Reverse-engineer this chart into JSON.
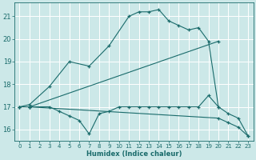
{
  "bg_color": "#cce8e8",
  "grid_color": "#ffffff",
  "line_color": "#1a6b6b",
  "xlabel": "Humidex (Indice chaleur)",
  "xlim": [
    -0.5,
    23.5
  ],
  "ylim": [
    15.5,
    21.6
  ],
  "yticks": [
    16,
    17,
    18,
    19,
    20,
    21
  ],
  "xticks": [
    0,
    1,
    2,
    3,
    4,
    5,
    6,
    7,
    8,
    9,
    10,
    11,
    12,
    13,
    14,
    15,
    16,
    17,
    18,
    19,
    20,
    21,
    22,
    23
  ],
  "lines": [
    {
      "x": [
        0,
        1,
        3,
        5,
        7,
        9,
        11,
        12,
        13,
        14,
        15,
        16,
        17,
        18,
        19,
        20
      ],
      "y": [
        17.0,
        17.1,
        17.9,
        19.0,
        18.8,
        19.7,
        21.0,
        21.2,
        21.2,
        21.3,
        20.8,
        20.6,
        20.4,
        20.5,
        19.9,
        17.0
      ]
    },
    {
      "x": [
        0,
        1,
        20
      ],
      "y": [
        17.0,
        17.0,
        19.9
      ]
    },
    {
      "x": [
        1,
        3,
        4,
        5,
        6,
        7,
        8,
        9,
        10,
        11,
        12,
        13,
        14,
        15,
        16,
        17,
        18,
        19,
        20,
        21,
        22,
        23
      ],
      "y": [
        17.0,
        17.0,
        16.8,
        16.6,
        16.4,
        15.8,
        16.7,
        16.8,
        17.0,
        17.0,
        17.0,
        17.0,
        17.0,
        17.0,
        17.0,
        17.0,
        17.0,
        17.5,
        17.0,
        16.7,
        16.5,
        15.7
      ]
    },
    {
      "x": [
        0,
        1,
        20,
        21,
        22,
        23
      ],
      "y": [
        17.0,
        17.0,
        16.5,
        16.3,
        16.1,
        15.7
      ]
    }
  ]
}
